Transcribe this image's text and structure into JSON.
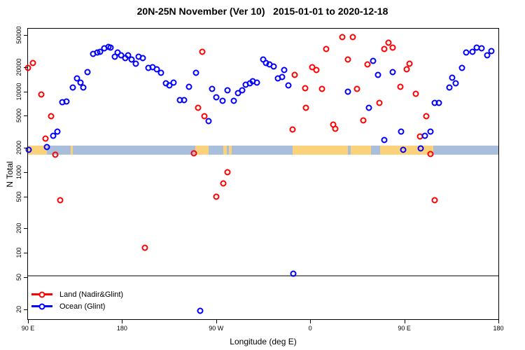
{
  "title": "20N-25N November (Ver 10)   2015-01-01 to 2020-12-18",
  "colors": {
    "land_series": "#ff0000",
    "ocean_series": "#0000ff",
    "map_ocean": "#a9bedb",
    "map_land": "#fbd27c",
    "reference_line": "#7f7f7f",
    "axis": "#000000"
  },
  "map_band": {
    "value_range": [
      1650,
      2150
    ],
    "land_segments_deg": [
      [
        0,
        18
      ],
      [
        41,
        43
      ],
      [
        160,
        173
      ],
      [
        187,
        190
      ],
      [
        192,
        195
      ],
      [
        253,
        306
      ],
      [
        309,
        328
      ],
      [
        337,
        388
      ]
    ]
  },
  "reference_line": {
    "value": 52
  },
  "chart_data": {
    "type": "scatter",
    "title": "20N-25N November (Ver 10)   2015-01-01 to 2020-12-18",
    "xlabel": "Longitude (deg E)",
    "ylabel": "N Total",
    "x_axis": {
      "range_deg": [
        0,
        450
      ],
      "note": "axis starts at 90E and wraps eastward around the globe to 180",
      "ticks": [
        {
          "pos": 0,
          "label": "90 E"
        },
        {
          "pos": 90,
          "label": "180"
        },
        {
          "pos": 180,
          "label": "90 W"
        },
        {
          "pos": 270,
          "label": "0"
        },
        {
          "pos": 360,
          "label": "90 E"
        },
        {
          "pos": 450,
          "label": "180"
        }
      ]
    },
    "y_axis": {
      "scale": "log",
      "range": [
        15,
        60000
      ],
      "ticks": [
        20,
        50,
        100,
        200,
        500,
        1000,
        2000,
        5000,
        10000,
        20000,
        50000
      ]
    },
    "legend_position": "bottom-left",
    "series": [
      {
        "name": "Land (Nadir&Glint)",
        "color": "#ff0000",
        "points": [
          [
            0,
            19500
          ],
          [
            5,
            22500
          ],
          [
            13,
            9100
          ],
          [
            17,
            2600
          ],
          [
            22,
            4950
          ],
          [
            26,
            1640
          ],
          [
            31,
            450
          ],
          [
            112,
            115
          ],
          [
            159,
            1700
          ],
          [
            163,
            6300
          ],
          [
            167,
            31000
          ],
          [
            169,
            4900
          ],
          [
            180,
            500
          ],
          [
            187,
            730
          ],
          [
            191,
            990
          ],
          [
            253,
            3400
          ],
          [
            255,
            16000
          ],
          [
            265,
            11000
          ],
          [
            266,
            6300
          ],
          [
            272,
            20000
          ],
          [
            276,
            18500
          ],
          [
            281,
            10800
          ],
          [
            285,
            33500
          ],
          [
            292,
            3900
          ],
          [
            294,
            3450
          ],
          [
            301,
            47500
          ],
          [
            306,
            24700
          ],
          [
            311,
            47500
          ],
          [
            315,
            10800
          ],
          [
            321,
            4370
          ],
          [
            325,
            21500
          ],
          [
            336,
            7240
          ],
          [
            341,
            33500
          ],
          [
            345,
            40500
          ],
          [
            349,
            35200
          ],
          [
            356,
            11400
          ],
          [
            362,
            19000
          ],
          [
            365,
            22000
          ],
          [
            371,
            9330
          ],
          [
            375,
            2740
          ],
          [
            381,
            4900
          ],
          [
            385,
            1670
          ],
          [
            389,
            450
          ]
        ]
      },
      {
        "name": "Ocean (Glint)",
        "color": "#0000ff",
        "points": [
          [
            1,
            1880
          ],
          [
            18,
            2050
          ],
          [
            24,
            2800
          ],
          [
            28,
            3200
          ],
          [
            33,
            7400
          ],
          [
            37,
            7500
          ],
          [
            43,
            11100
          ],
          [
            47,
            14500
          ],
          [
            50,
            13000
          ],
          [
            53,
            11100
          ],
          [
            57,
            17500
          ],
          [
            62,
            29100
          ],
          [
            66,
            30500
          ],
          [
            69,
            31200
          ],
          [
            73,
            34200
          ],
          [
            77,
            35800
          ],
          [
            79,
            35000
          ],
          [
            83,
            27200
          ],
          [
            86,
            30500
          ],
          [
            89,
            27900
          ],
          [
            93,
            25900
          ],
          [
            96,
            27900
          ],
          [
            99,
            24800
          ],
          [
            103,
            22300
          ],
          [
            106,
            27200
          ],
          [
            110,
            25900
          ],
          [
            115,
            19500
          ],
          [
            119,
            19900
          ],
          [
            123,
            19000
          ],
          [
            127,
            17000
          ],
          [
            132,
            12700
          ],
          [
            135,
            12000
          ],
          [
            139,
            12900
          ],
          [
            145,
            7760
          ],
          [
            149,
            7760
          ],
          [
            154,
            11400
          ],
          [
            161,
            17000
          ],
          [
            165,
            19
          ],
          [
            173,
            4280
          ],
          [
            176,
            10800
          ],
          [
            180,
            8400
          ],
          [
            186,
            7600
          ],
          [
            191,
            10300
          ],
          [
            197,
            7600
          ],
          [
            201,
            9550
          ],
          [
            205,
            10300
          ],
          [
            208,
            12050
          ],
          [
            212,
            12700
          ],
          [
            215,
            13400
          ],
          [
            219,
            13000
          ],
          [
            225,
            24800
          ],
          [
            228,
            22500
          ],
          [
            231,
            21500
          ],
          [
            235,
            20500
          ],
          [
            239,
            14500
          ],
          [
            243,
            15200
          ],
          [
            245,
            18600
          ],
          [
            249,
            12000
          ],
          [
            254,
            55
          ],
          [
            306,
            9900
          ],
          [
            326,
            6300
          ],
          [
            330,
            24100
          ],
          [
            335,
            16100
          ],
          [
            341,
            2500
          ],
          [
            349,
            17500
          ],
          [
            357,
            3200
          ],
          [
            359,
            1880
          ],
          [
            376,
            1970
          ],
          [
            380,
            2800
          ],
          [
            385,
            3200
          ],
          [
            389,
            7240
          ],
          [
            393,
            7240
          ],
          [
            403,
            11100
          ],
          [
            406,
            14800
          ],
          [
            409,
            12700
          ],
          [
            415,
            19500
          ],
          [
            419,
            30500
          ],
          [
            425,
            31200
          ],
          [
            429,
            35000
          ],
          [
            434,
            34200
          ],
          [
            439,
            27900
          ],
          [
            443,
            31900
          ]
        ]
      }
    ]
  }
}
